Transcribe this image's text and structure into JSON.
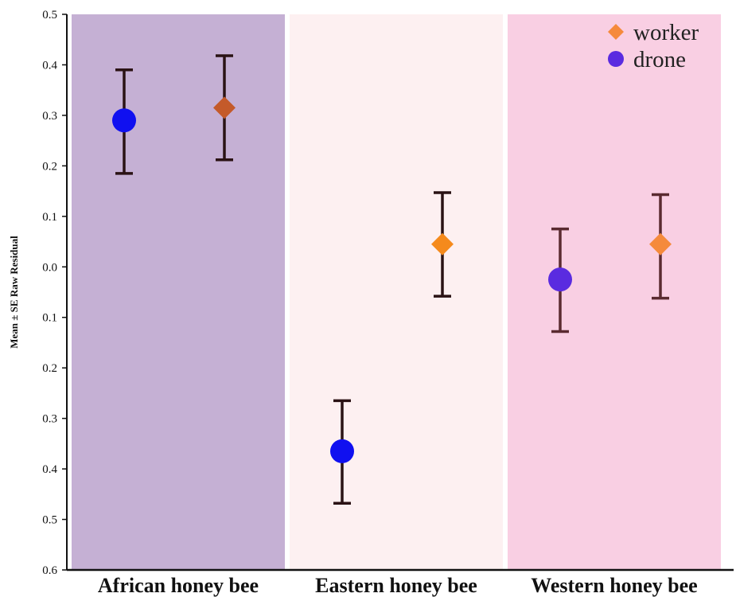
{
  "chart_data": {
    "type": "scatter",
    "title": "",
    "xlabel": "",
    "ylabel": "Mean ± SE Raw Residual",
    "categories": [
      "African honey bee",
      "Eastern honey bee",
      "Western honey bee"
    ],
    "category_colors": [
      "#c5b0d4",
      "#fdf0f1",
      "#f9cfe3"
    ],
    "ylim": [
      -0.6,
      0.5
    ],
    "y_ticks": [
      0.5,
      0.4,
      0.3,
      0.2,
      0.1,
      0.0,
      -0.1,
      -0.2,
      -0.3,
      -0.4,
      -0.5,
      -0.6
    ],
    "y_tick_labels": [
      "0.5",
      "0.4",
      "0.3",
      "0.2",
      "0.1",
      "0.0",
      "0.1",
      "0.2",
      "0.3",
      "0.4",
      "0.5",
      "0.6"
    ],
    "legend_position": "top-right",
    "legend": [
      {
        "label": "worker",
        "marker": "diamond",
        "color": "#f58a3c"
      },
      {
        "label": "drone",
        "marker": "circle",
        "color": "#5a2be0"
      }
    ],
    "points": [
      {
        "category": "African honey bee",
        "slot": "left",
        "marker": "circle",
        "color": "#1010f0",
        "bar_color": "#2a1214",
        "mean": 0.29,
        "lower": 0.185,
        "upper": 0.39
      },
      {
        "category": "African honey bee",
        "slot": "right",
        "marker": "diamond",
        "color": "#c45a2a",
        "bar_color": "#2a1214",
        "mean": 0.315,
        "lower": 0.212,
        "upper": 0.418
      },
      {
        "category": "Eastern honey bee",
        "slot": "left",
        "marker": "circle",
        "color": "#1010f0",
        "bar_color": "#2a1214",
        "mean": -0.365,
        "lower": -0.468,
        "upper": -0.265
      },
      {
        "category": "Eastern honey bee",
        "slot": "right",
        "marker": "diamond",
        "color": "#f58a1c",
        "bar_color": "#2a1214",
        "mean": 0.045,
        "lower": -0.058,
        "upper": 0.147
      },
      {
        "category": "Western honey bee",
        "slot": "left",
        "marker": "circle",
        "color": "#5a2be0",
        "bar_color": "#5a2a30",
        "mean": -0.025,
        "lower": -0.128,
        "upper": 0.075
      },
      {
        "category": "Western honey bee",
        "slot": "right",
        "marker": "diamond",
        "color": "#f58a3c",
        "bar_color": "#5a2a30",
        "mean": 0.045,
        "lower": -0.062,
        "upper": 0.143
      }
    ]
  }
}
